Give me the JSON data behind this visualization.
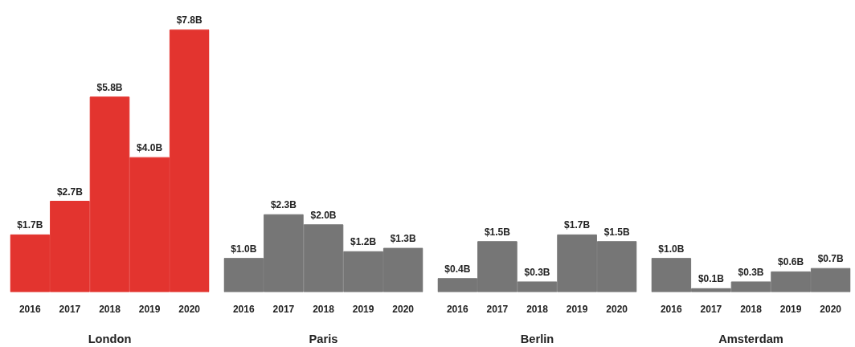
{
  "chart_data": [
    {
      "type": "bar",
      "xlabel": "London",
      "categories": [
        "2016",
        "2017",
        "2018",
        "2019",
        "2020"
      ],
      "tick_labels": "x",
      "grid": false,
      "series": [
        {
          "color": "#e3342f",
          "values": [
            1.7,
            2.7,
            5.8,
            4.0,
            7.8
          ],
          "value_labels": [
            "$1.7B",
            "$2.7B",
            "$5.8B",
            "$4.0B",
            "$7.8B"
          ]
        }
      ]
    },
    {
      "type": "bar",
      "xlabel": "Paris",
      "categories": [
        "2016",
        "2017",
        "2018",
        "2019",
        "2020"
      ],
      "tick_labels": "x",
      "grid": false,
      "series": [
        {
          "color": "#767676",
          "values": [
            1.0,
            2.3,
            2.0,
            1.2,
            1.3
          ],
          "value_labels": [
            "$1.0B",
            "$2.3B",
            "$2.0B",
            "$1.2B",
            "$1.3B"
          ]
        }
      ]
    },
    {
      "type": "bar",
      "xlabel": "Berlin",
      "categories": [
        "2016",
        "2017",
        "2018",
        "2019",
        "2020"
      ],
      "tick_labels": "x",
      "grid": false,
      "series": [
        {
          "color": "#767676",
          "values": [
            0.4,
            1.5,
            0.3,
            1.7,
            1.5
          ],
          "value_labels": [
            "$0.4B",
            "$1.5B",
            "$0.3B",
            "$1.7B",
            "$1.5B"
          ]
        }
      ]
    },
    {
      "type": "bar",
      "xlabel": "Amsterdam",
      "categories": [
        "2016",
        "2017",
        "2018",
        "2019",
        "2020"
      ],
      "tick_labels": "x",
      "grid": false,
      "series": [
        {
          "color": "#767676",
          "values": [
            1.0,
            0.1,
            0.3,
            0.6,
            0.7
          ],
          "value_labels": [
            "$1.0B",
            "$0.1B",
            "$0.3B",
            "$0.6B",
            "$0.7B"
          ]
        }
      ]
    }
  ]
}
